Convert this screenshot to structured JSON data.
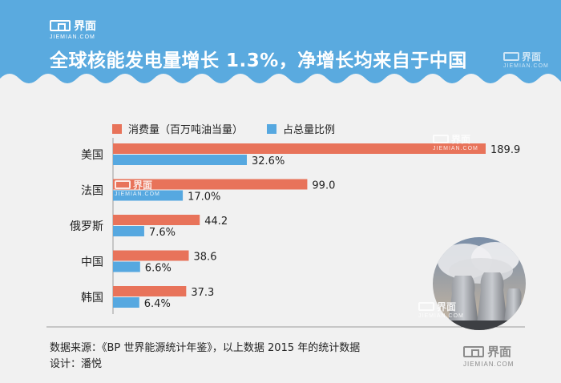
{
  "header": {
    "logo_text": "界面",
    "logo_sub": "JIEMIAN.COM",
    "title": "全球核能发电量增长 1.3%，净增长均来自于中国"
  },
  "legend": [
    {
      "label": "消费量（百万吨油当量）",
      "color": "#e8735a"
    },
    {
      "label": "占总量比例",
      "color": "#56a8e0"
    }
  ],
  "chart_data": {
    "type": "bar",
    "orientation": "horizontal",
    "title": "全球核能发电量增长 1.3%，净增长均来自于中国",
    "categories": [
      "美国",
      "法国",
      "俄罗斯",
      "中国",
      "韩国"
    ],
    "series": [
      {
        "name": "消费量（百万吨油当量）",
        "color": "#e8735a",
        "values": [
          189.9,
          99.0,
          44.2,
          38.6,
          37.3
        ],
        "labels": [
          "189.9",
          "99.0",
          "44.2",
          "38.6",
          "37.3"
        ]
      },
      {
        "name": "占总量比例",
        "color": "#56a8e0",
        "values": [
          32.6,
          17.0,
          7.6,
          6.6,
          6.4
        ],
        "labels": [
          "32.6%",
          "17.0%",
          "7.6%",
          "6.6%",
          "6.4%"
        ]
      }
    ],
    "xlim": [
      0,
      189.9
    ],
    "grid": false,
    "legend_position": "top-left"
  },
  "watermark": {
    "text": "界面",
    "sub": "JIEMIAN.COM"
  },
  "footer": {
    "source": "数据来源：《BP 世界能源统计年鉴》，以上数据 2015 年的统计数据",
    "designer": "设计：潘悦"
  }
}
